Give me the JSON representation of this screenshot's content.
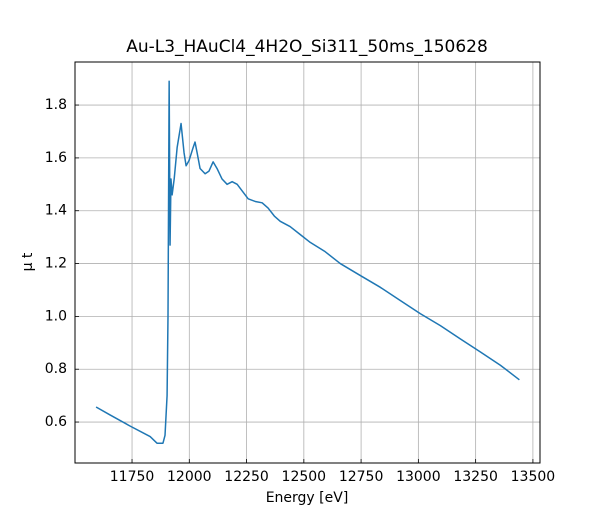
{
  "chart_data": {
    "type": "line",
    "title": "Au-L3_HAuCl4_4H2O_Si311_50ms_150628",
    "x_label": "Energy [eV]",
    "y_label": "μ t",
    "grid": true,
    "tick_direction": "in",
    "x": [
      11593,
      11654,
      11741,
      11829,
      11859,
      11885,
      11894,
      11903,
      11907,
      11912,
      11916,
      11920,
      11925,
      11934,
      11947,
      11964,
      11977,
      11986,
      11999,
      12017,
      12025,
      12034,
      12047,
      12069,
      12086,
      12104,
      12121,
      12143,
      12165,
      12187,
      12209,
      12235,
      12257,
      12288,
      12318,
      12344,
      12371,
      12397,
      12440,
      12484,
      12528,
      12593,
      12659,
      12746,
      12834,
      12921,
      13009,
      13096,
      13183,
      13271,
      13358,
      13441
    ],
    "series": [
      {
        "name": "μ t",
        "color": "#1f77b4",
        "values": [
          0.657,
          0.627,
          0.585,
          0.545,
          0.52,
          0.52,
          0.55,
          0.7,
          1.0,
          1.89,
          1.27,
          1.52,
          1.46,
          1.52,
          1.64,
          1.73,
          1.62,
          1.57,
          1.59,
          1.64,
          1.66,
          1.62,
          1.56,
          1.54,
          1.55,
          1.585,
          1.56,
          1.52,
          1.5,
          1.51,
          1.5,
          1.47,
          1.445,
          1.435,
          1.43,
          1.41,
          1.38,
          1.36,
          1.34,
          1.31,
          1.28,
          1.245,
          1.2,
          1.155,
          1.11,
          1.06,
          1.01,
          0.965,
          0.915,
          0.865,
          0.815,
          0.76
        ]
      }
    ],
    "xlim": [
      11501,
      13531
    ],
    "ylim": [
      0.445,
      1.963
    ],
    "xticks": [
      11750,
      12000,
      12250,
      12500,
      12750,
      13000,
      13250,
      13500
    ],
    "yticks": [
      {
        "value": 0.6,
        "label": "0.6"
      },
      {
        "value": 0.8,
        "label": "0.8"
      },
      {
        "value": 1.0,
        "label": "1.0"
      },
      {
        "value": 1.2,
        "label": "1.2"
      },
      {
        "value": 1.4,
        "label": "1.4"
      },
      {
        "value": 1.6,
        "label": "1.6"
      },
      {
        "value": 1.8,
        "label": "1.8"
      }
    ]
  }
}
